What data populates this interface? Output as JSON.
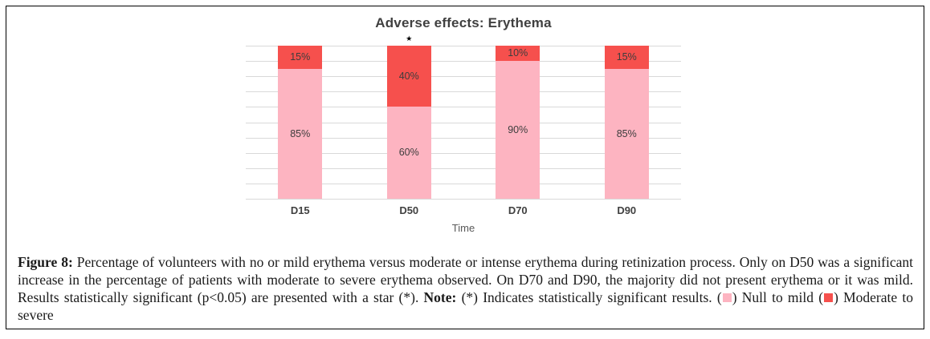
{
  "colors": {
    "chart_pink": "#FDB4C1",
    "chart_red": "#F6504D",
    "grid": "#D9D9D9",
    "title_gray": "#404040",
    "axis_gray": "#595959",
    "caption_text": "#1A1A1A",
    "border": "#000000"
  },
  "chart_data": {
    "type": "bar",
    "stacked": true,
    "title": "Adverse effects: Erythema",
    "xlabel": "Time",
    "categories": [
      "D15",
      "D50",
      "D70",
      "D90"
    ],
    "series": [
      {
        "name": "Null to mild",
        "color": "#FDB4C1",
        "values": [
          85,
          60,
          90,
          85
        ]
      },
      {
        "name": "Moderate to severe",
        "color": "#F6504D",
        "values": [
          15,
          40,
          10,
          15
        ]
      }
    ],
    "value_suffix": "%",
    "ylim": [
      0,
      100
    ],
    "gridline_step": 10,
    "grid": true,
    "legend_position": "in-caption",
    "annotations": [
      {
        "category": "D50",
        "text": "★"
      }
    ]
  },
  "caption": {
    "figure_label": "Figure 8:",
    "body": " Percentage of volunteers with no or mild erythema versus moderate or intense erythema during retinization process. Only on D50 was a significant increase in the percentage of patients with moderate to severe erythema observed. On D70 and D90, the majority did not present erythema or it was mild. Results statistically significant (p<0.05) are presented with a star (*). ",
    "note_label": "Note:",
    "note_body": " (*) Indicates statistically significant results. ",
    "legend_null": " Null to mild ",
    "legend_moderate": " Moderate to severe"
  }
}
